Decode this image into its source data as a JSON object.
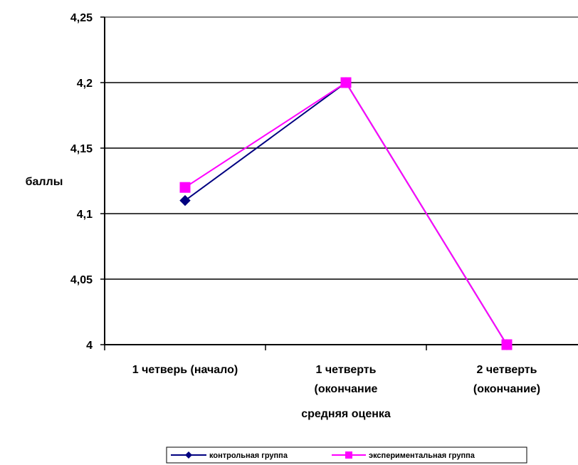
{
  "chart_data": {
    "type": "line",
    "title": "",
    "xlabel": "средняя оценка",
    "ylabel": "баллы",
    "categories": [
      [
        "1 четверь (начало)"
      ],
      [
        "1 четверть",
        "(окончание"
      ],
      [
        "2 четверть",
        "(окончание)"
      ]
    ],
    "y_tick_labels": [
      "4",
      "4,05",
      "4,1",
      "4,15",
      "4,2",
      "4,25"
    ],
    "y_ticks": [
      4,
      4.05,
      4.1,
      4.15,
      4.2,
      4.25
    ],
    "ylim": [
      4,
      4.25
    ],
    "grid": true,
    "legend_position": "bottom",
    "series": [
      {
        "name": "контрольная группа",
        "values": [
          4.11,
          4.2,
          4.0
        ],
        "color": "#000080",
        "marker": "diamond"
      },
      {
        "name": "экспериментальная группа",
        "values": [
          4.12,
          4.2,
          4.0
        ],
        "color": "#FF00FF",
        "marker": "square"
      }
    ]
  }
}
